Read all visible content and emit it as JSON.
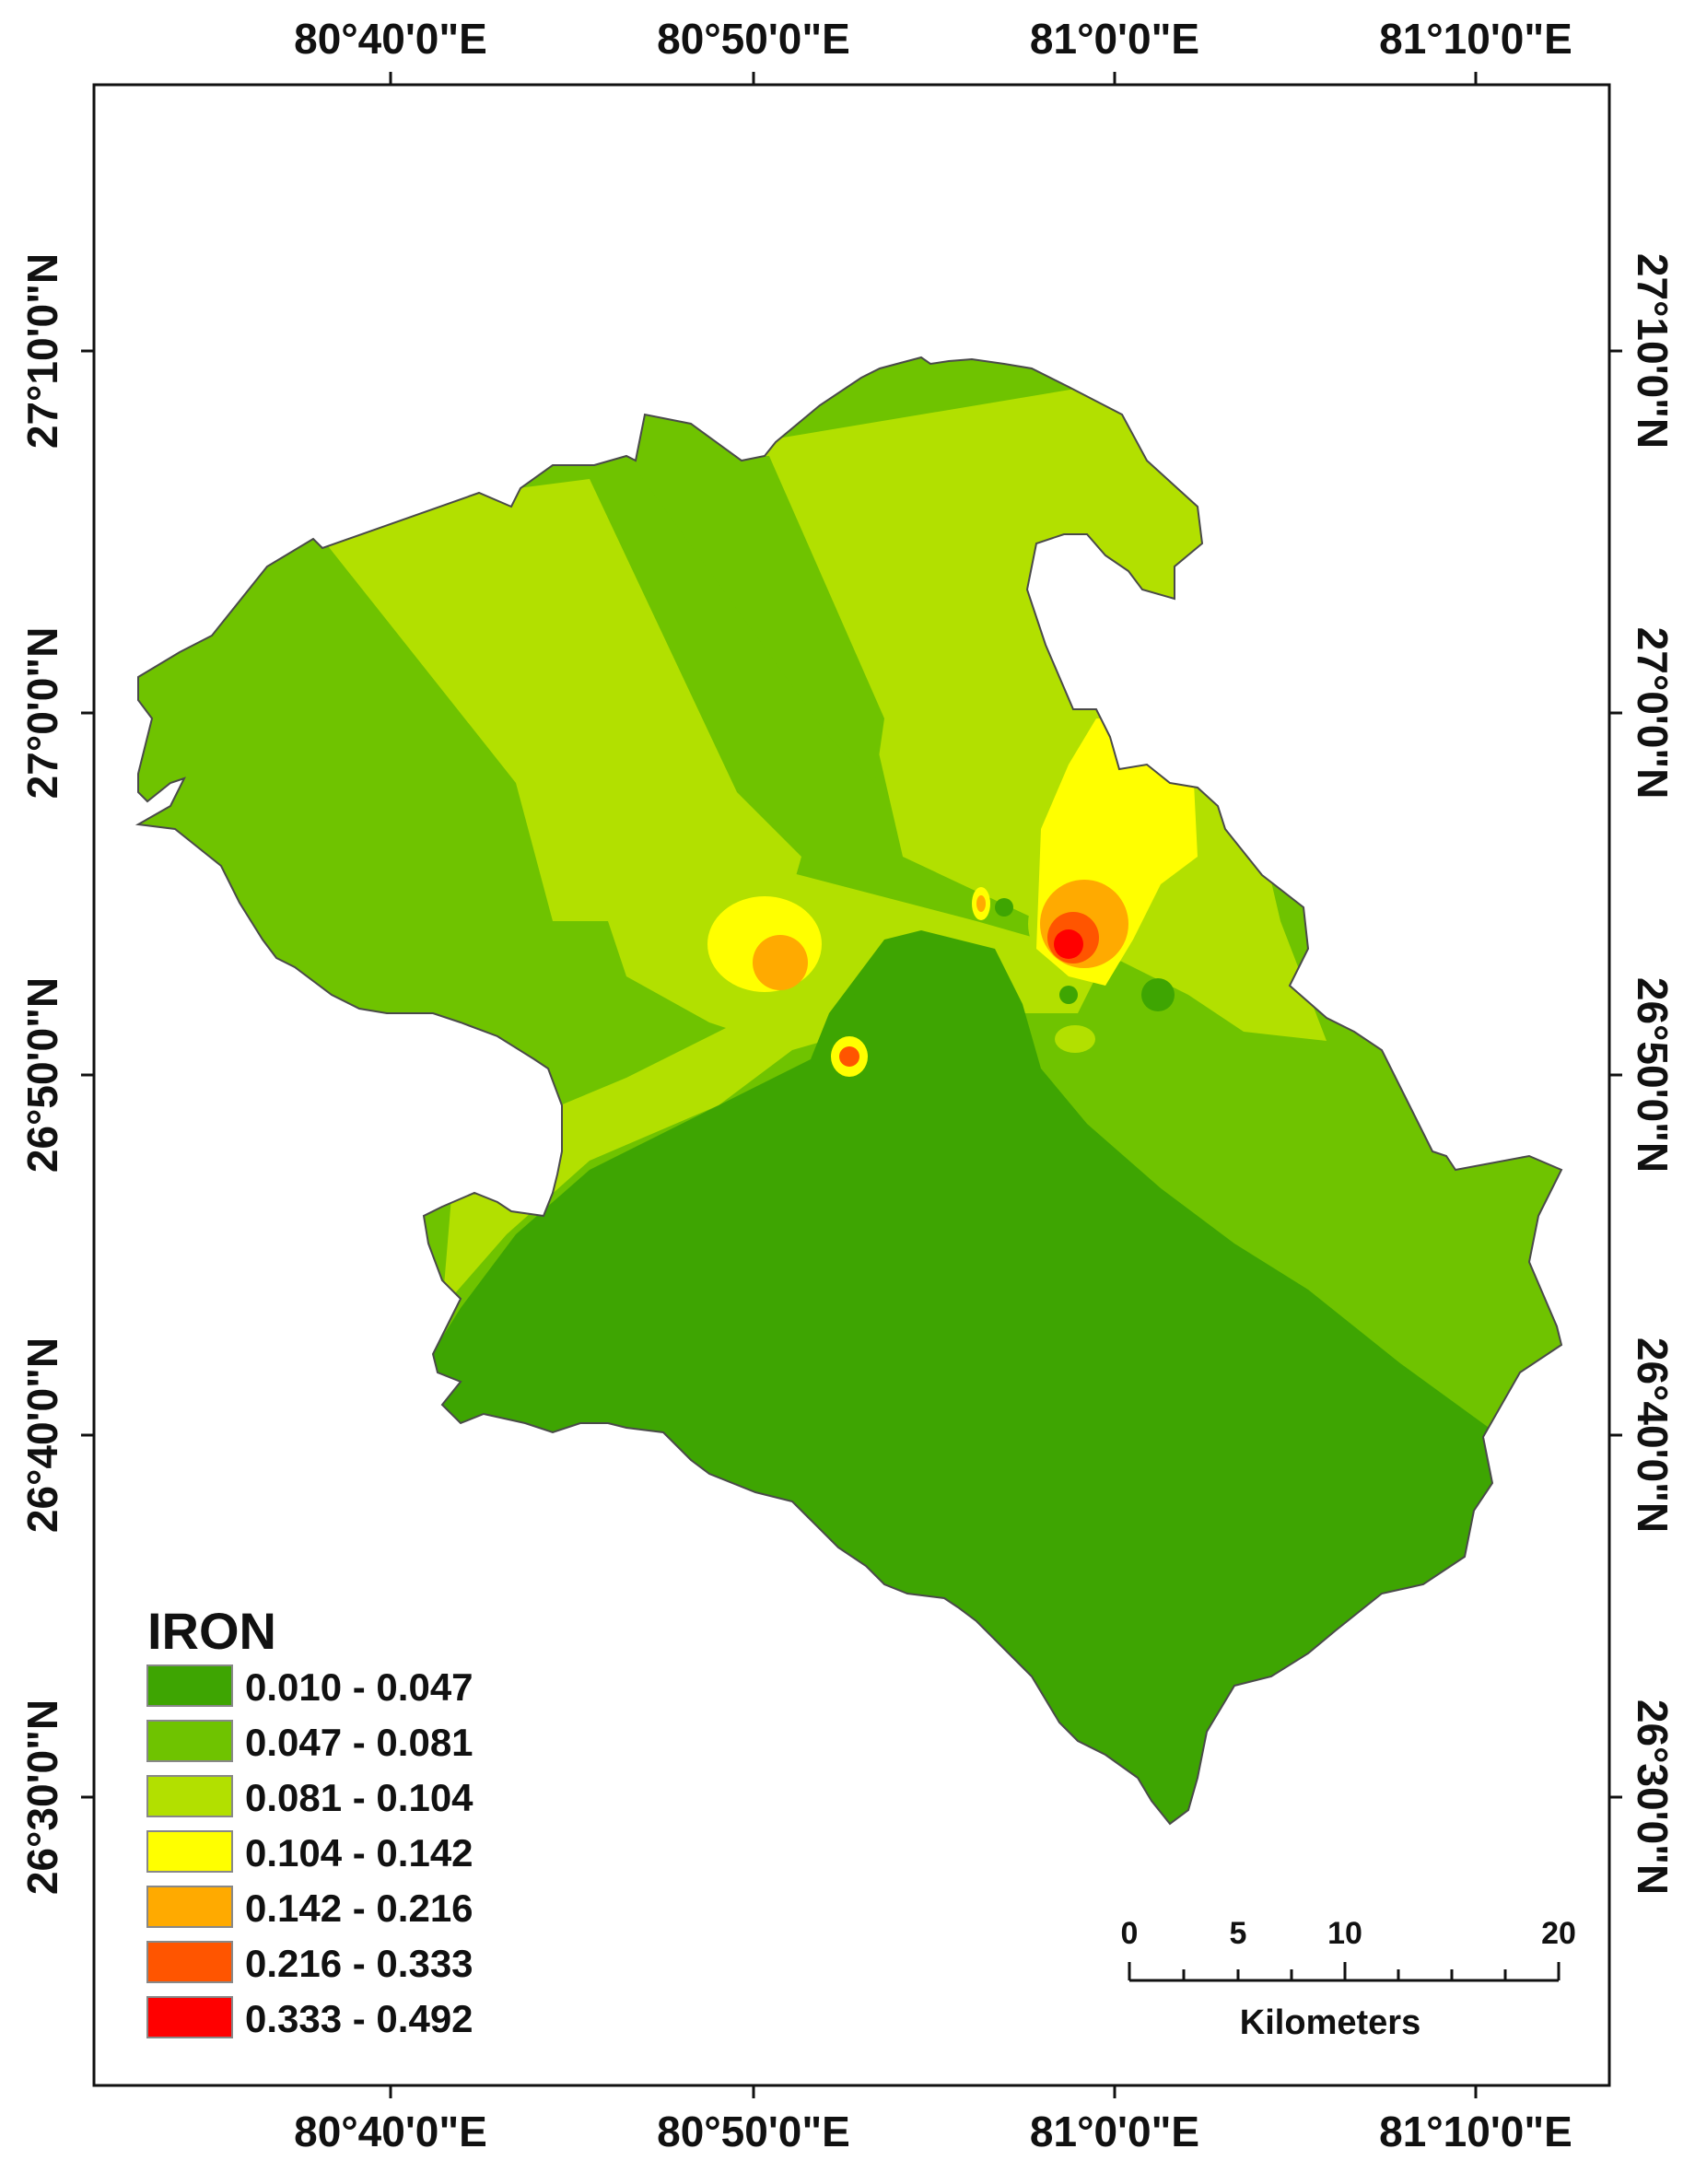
{
  "map": {
    "lon_labels": [
      "80°40'0\"E",
      "80°50'0\"E",
      "81°0'0\"E",
      "81°10'0\"E"
    ],
    "lat_labels": [
      "27°10'0\"N",
      "27°0'0\"N",
      "26°50'0\"N",
      "26°40'0\"N",
      "26°30'0\"N"
    ]
  },
  "legend": {
    "title": "IRON",
    "classes": [
      {
        "label": "0.010 - 0.047",
        "color": "#3ea502"
      },
      {
        "label": "0.047 - 0.081",
        "color": "#6fc300"
      },
      {
        "label": "0.081 - 0.104",
        "color": "#b2e000"
      },
      {
        "label": "0.104 - 0.142",
        "color": "#ffff00"
      },
      {
        "label": "0.142 - 0.216",
        "color": "#ffaa00"
      },
      {
        "label": "0.216 - 0.333",
        "color": "#ff5500"
      },
      {
        "label": "0.333 - 0.492",
        "color": "#ff0000"
      }
    ]
  },
  "scalebar": {
    "ticks": [
      "0",
      "5",
      "10",
      "20"
    ],
    "unit": "Kilometers"
  }
}
